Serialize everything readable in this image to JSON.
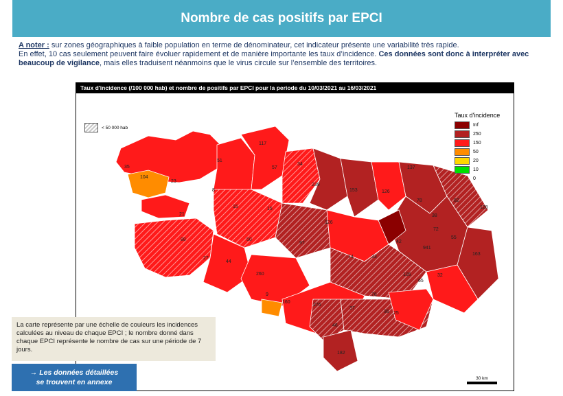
{
  "header": {
    "title": "Nombre de cas positifs par EPCI"
  },
  "note": {
    "lead": "A noter :",
    "p1": " sur zones géographiques à faible population en terme de dénominateur, cet indicateur présente une variabilité très rapide.",
    "p2a": "En effet, 10 cas seulement peuvent faire évoluer rapidement et de manière importante les taux d’incidence. ",
    "p2b": "Ces données sont donc à interpréter avec beaucoup de vigilance",
    "p2c": ", mais elles traduisent néanmoins que le virus circule sur l’ensemble des territoires."
  },
  "map": {
    "title": "Taux d'incidence (/100 000 hab) et nombre de positifs par EPCI pour la periode du 10/03/2021 au 16/03/2021",
    "legend": {
      "title": "Taux d'incidence",
      "classes": [
        {
          "label": "Inf",
          "color": "#8b0000"
        },
        {
          "label": "250",
          "color": "#b22222"
        },
        {
          "label": "150",
          "color": "#ff1a1a"
        },
        {
          "label": "50",
          "color": "#ff8c00"
        },
        {
          "label": "20",
          "color": "#ffd700"
        },
        {
          "label": "10",
          "color": "#00e000"
        },
        {
          "label": "0",
          "color": ""
        }
      ]
    },
    "hatch_legend": "< 50 000 hab",
    "scale": "30 km",
    "counts": [
      "117",
      "51",
      "57",
      "34",
      "137",
      "239",
      "153",
      "126",
      "35",
      "104",
      "23",
      "8",
      "15",
      "126",
      "15",
      "78",
      "82",
      "128",
      "38",
      "42",
      "72",
      "55",
      "941",
      "163",
      "21",
      "88",
      "50",
      "97",
      "74",
      "33",
      "27",
      "44",
      "260",
      "105",
      "65",
      "32",
      "9",
      "160",
      "276",
      "76",
      "37",
      "36",
      "46",
      "25",
      "182"
    ]
  },
  "explain": "La carte représente par une échelle de couleurs les incidences calculées au niveau de chaque EPCI ; le nombre donné dans chaque EPCI représente le nombre de cas sur une période de 7 jours.",
  "cta": {
    "line1": "→ Les données détaillées",
    "line2": "se trouvent en annexe"
  }
}
